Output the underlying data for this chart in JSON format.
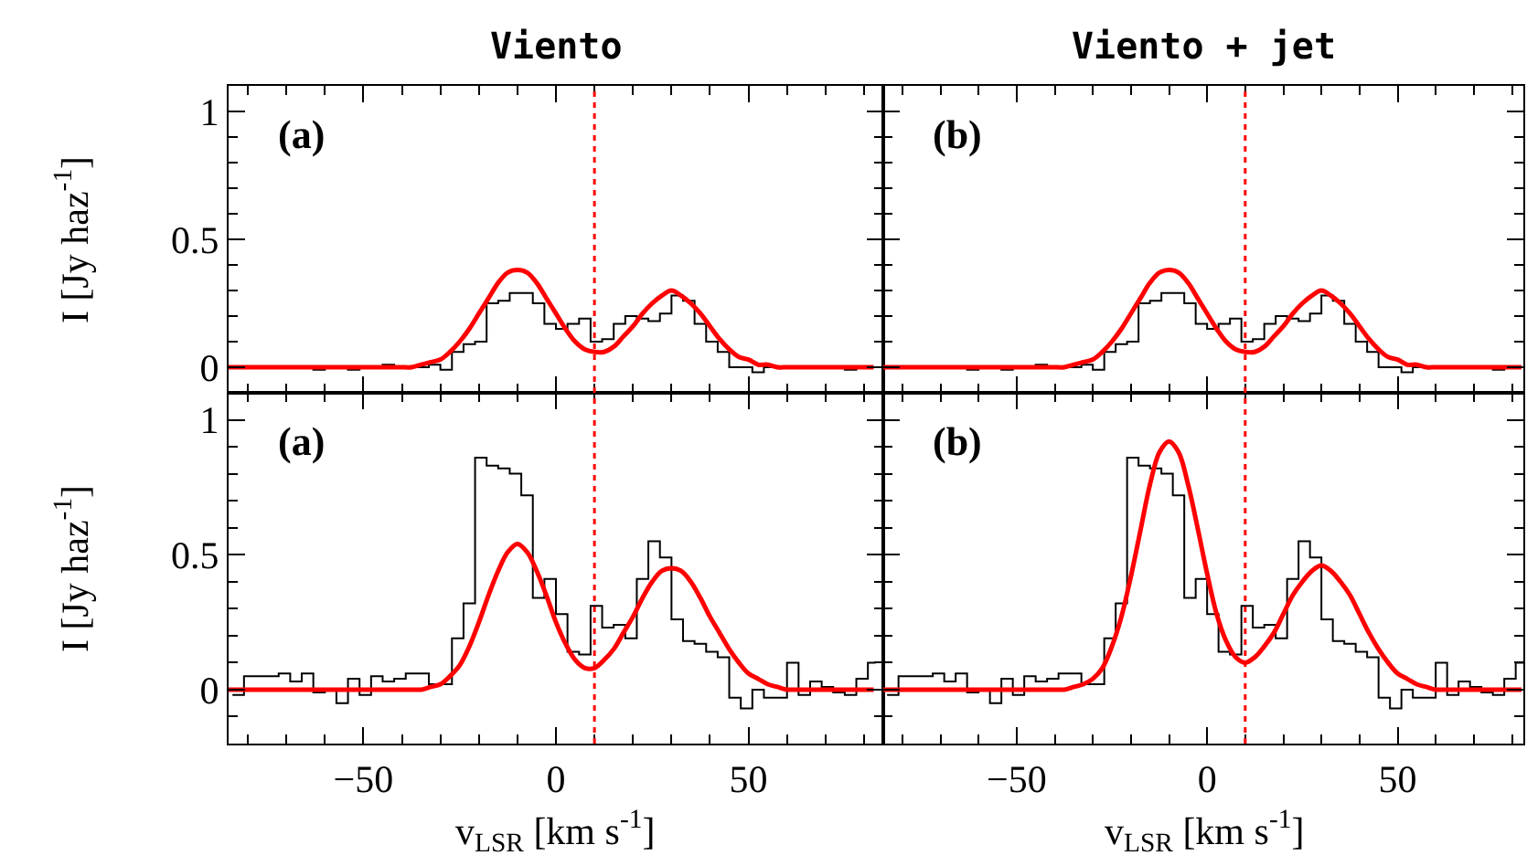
{
  "chart_data": [
    {
      "type": "line",
      "title": "Viento",
      "ylabel": "I [Jy haz$^{-1}$]",
      "annotations": [
        "(a)"
      ],
      "tick_labels": "y",
      "xlim": [
        -85,
        85
      ],
      "ylim": [
        -0.1,
        1.1
      ],
      "xticks": [
        {
          "value": -80,
          "label": null
        },
        {
          "value": -70,
          "label": null
        },
        {
          "value": -60,
          "label": null
        },
        -50,
        {
          "value": -40,
          "label": null
        },
        {
          "value": -30,
          "label": null
        },
        {
          "value": -20,
          "label": null
        },
        {
          "value": -10,
          "label": null
        },
        0,
        {
          "value": 10,
          "label": null
        },
        {
          "value": 20,
          "label": null
        },
        {
          "value": 30,
          "label": null
        },
        {
          "value": 40,
          "label": null
        },
        50,
        {
          "value": 60,
          "label": null
        },
        {
          "value": 70,
          "label": null
        },
        {
          "value": 80,
          "label": null
        }
      ],
      "yticks": [
        0,
        {
          "value": 0.1,
          "label": null
        },
        {
          "value": 0.2,
          "label": null
        },
        {
          "value": 0.3,
          "label": null
        },
        {
          "value": 0.4,
          "label": null
        },
        0.5,
        {
          "value": 0.6,
          "label": null
        },
        {
          "value": 0.7,
          "label": null
        },
        {
          "value": 0.8,
          "label": null
        },
        {
          "value": 0.9,
          "label": null
        },
        1
      ],
      "ref_lines": [
        {
          "axis": "x",
          "value": 10,
          "color": "#ff0000",
          "line_style": "dotted"
        }
      ],
      "series": [
        {
          "type": "histogram",
          "color": "#000000",
          "bins": [
            -84,
            -81,
            -78,
            -75,
            -72,
            -69,
            -66,
            -63,
            -60,
            -57,
            -54,
            -51,
            -48,
            -45,
            -42,
            -39,
            -36,
            -33,
            -30,
            -27,
            -24,
            -21,
            -18,
            -15,
            -12,
            -9,
            -6,
            -3,
            0,
            3,
            6,
            9,
            12,
            15,
            18,
            21,
            24,
            27,
            30,
            33,
            36,
            39,
            42,
            45,
            48,
            51,
            54,
            57,
            60,
            63,
            66,
            69,
            72,
            75,
            78,
            81,
            83
          ],
          "values": [
            0,
            0,
            0,
            0,
            0,
            0,
            0,
            -0.01,
            0,
            0,
            -0.01,
            0,
            0,
            0.01,
            0,
            0,
            0,
            0.01,
            -0.01,
            0.06,
            0.09,
            0.1,
            0.25,
            0.26,
            0.29,
            0.29,
            0.25,
            0.17,
            0.15,
            0.17,
            0.19,
            0.1,
            0.11,
            0.17,
            0.2,
            0.19,
            0.18,
            0.21,
            0.28,
            0.26,
            0.17,
            0.1,
            0.06,
            0,
            0,
            -0.02,
            0,
            0,
            0,
            0,
            0,
            0,
            0,
            -0.01,
            0,
            0
          ]
        },
        {
          "color": "#ff0000",
          "x": [
            -85,
            -82.5,
            -80,
            -77.5,
            -75,
            -72.5,
            -70,
            -67.5,
            -65,
            -62.5,
            -60,
            -57.5,
            -55,
            -52.5,
            -50,
            -47.5,
            -45,
            -42.5,
            -40,
            -37.5,
            -35,
            -32.5,
            -30,
            -27.5,
            -25,
            -22.5,
            -20,
            -17.5,
            -15,
            -12.5,
            -10,
            -7.5,
            -5,
            -2.5,
            0,
            2.5,
            5,
            7.5,
            10,
            12.5,
            15,
            17.5,
            20,
            22.5,
            25,
            27.5,
            30,
            32.5,
            35,
            37.5,
            40,
            42.5,
            45,
            47.5,
            50,
            52.5,
            55,
            57.5,
            60,
            62.5,
            65,
            67.5,
            70,
            72.5,
            75,
            77.5,
            80,
            82.5
          ],
          "values": [
            0,
            0,
            0,
            0,
            0,
            0,
            0,
            0,
            0,
            0,
            0,
            0,
            0,
            0,
            0,
            0,
            0,
            0,
            0,
            0,
            0.01,
            0.02,
            0.03,
            0.06,
            0.1,
            0.15,
            0.21,
            0.27,
            0.33,
            0.37,
            0.38,
            0.37,
            0.33,
            0.27,
            0.21,
            0.15,
            0.1,
            0.07,
            0.06,
            0.06,
            0.08,
            0.12,
            0.16,
            0.21,
            0.25,
            0.28,
            0.3,
            0.28,
            0.25,
            0.21,
            0.16,
            0.11,
            0.07,
            0.04,
            0.03,
            0.01,
            0.01,
            0,
            0,
            0,
            0,
            0,
            0,
            0,
            0,
            0,
            0,
            0
          ]
        }
      ]
    },
    {
      "type": "line",
      "title": "Viento + jet",
      "annotations": [
        "(b)"
      ],
      "tick_labels": false,
      "xlim": [
        -85,
        83
      ],
      "ylim": [
        -0.1,
        1.1
      ],
      "xticks": [
        {
          "value": -80,
          "label": null
        },
        {
          "value": -70,
          "label": null
        },
        {
          "value": -60,
          "label": null
        },
        -50,
        {
          "value": -40,
          "label": null
        },
        {
          "value": -30,
          "label": null
        },
        {
          "value": -20,
          "label": null
        },
        {
          "value": -10,
          "label": null
        },
        0,
        {
          "value": 10,
          "label": null
        },
        {
          "value": 20,
          "label": null
        },
        {
          "value": 30,
          "label": null
        },
        {
          "value": 40,
          "label": null
        },
        50,
        {
          "value": 60,
          "label": null
        },
        {
          "value": 70,
          "label": null
        },
        {
          "value": 80,
          "label": null
        }
      ],
      "yticks": [
        0,
        {
          "value": 0.1,
          "label": null
        },
        {
          "value": 0.2,
          "label": null
        },
        {
          "value": 0.3,
          "label": null
        },
        {
          "value": 0.4,
          "label": null
        },
        0.5,
        {
          "value": 0.6,
          "label": null
        },
        {
          "value": 0.7,
          "label": null
        },
        {
          "value": 0.8,
          "label": null
        },
        {
          "value": 0.9,
          "label": null
        },
        1
      ],
      "ref_lines": [
        {
          "axis": "x",
          "value": 10,
          "color": "#ff0000",
          "line_style": "dotted"
        }
      ],
      "series": [
        {
          "type": "histogram",
          "color": "#000000",
          "bins": [
            -84,
            -81,
            -78,
            -75,
            -72,
            -69,
            -66,
            -63,
            -60,
            -57,
            -54,
            -51,
            -48,
            -45,
            -42,
            -39,
            -36,
            -33,
            -30,
            -27,
            -24,
            -21,
            -18,
            -15,
            -12,
            -9,
            -6,
            -3,
            0,
            3,
            6,
            9,
            12,
            15,
            18,
            21,
            24,
            27,
            30,
            33,
            36,
            39,
            42,
            45,
            48,
            51,
            54,
            57,
            60,
            63,
            66,
            69,
            72,
            75,
            78,
            81,
            83
          ],
          "values": [
            0,
            0,
            0,
            0,
            0,
            0,
            0,
            -0.01,
            0,
            0,
            -0.01,
            0,
            0,
            0.01,
            0,
            0,
            0,
            0.01,
            -0.01,
            0.06,
            0.09,
            0.1,
            0.25,
            0.26,
            0.29,
            0.29,
            0.25,
            0.17,
            0.15,
            0.17,
            0.19,
            0.1,
            0.11,
            0.17,
            0.2,
            0.19,
            0.18,
            0.21,
            0.28,
            0.26,
            0.17,
            0.1,
            0.06,
            0,
            0,
            -0.02,
            0,
            0,
            0,
            0,
            0,
            0,
            0,
            -0.01,
            0,
            0
          ]
        },
        {
          "color": "#ff0000",
          "x": [
            -85,
            -82.5,
            -80,
            -77.5,
            -75,
            -72.5,
            -70,
            -67.5,
            -65,
            -62.5,
            -60,
            -57.5,
            -55,
            -52.5,
            -50,
            -47.5,
            -45,
            -42.5,
            -40,
            -37.5,
            -35,
            -32.5,
            -30,
            -27.5,
            -25,
            -22.5,
            -20,
            -17.5,
            -15,
            -12.5,
            -10,
            -7.5,
            -5,
            -2.5,
            0,
            2.5,
            5,
            7.5,
            10,
            12.5,
            15,
            17.5,
            20,
            22.5,
            25,
            27.5,
            30,
            32.5,
            35,
            37.5,
            40,
            42.5,
            45,
            47.5,
            50,
            52.5,
            55,
            57.5,
            60,
            62.5,
            65,
            67.5,
            70,
            72.5,
            75,
            77.5,
            80,
            82.5
          ],
          "values": [
            0,
            0,
            0,
            0,
            0,
            0,
            0,
            0,
            0,
            0,
            0,
            0,
            0,
            0,
            0,
            0,
            0,
            0,
            0,
            0,
            0.01,
            0.02,
            0.03,
            0.06,
            0.1,
            0.15,
            0.21,
            0.27,
            0.33,
            0.37,
            0.38,
            0.37,
            0.33,
            0.27,
            0.21,
            0.15,
            0.1,
            0.07,
            0.06,
            0.06,
            0.08,
            0.12,
            0.16,
            0.21,
            0.25,
            0.28,
            0.3,
            0.28,
            0.25,
            0.21,
            0.16,
            0.11,
            0.07,
            0.04,
            0.03,
            0.01,
            0.01,
            0,
            0,
            0,
            0,
            0,
            0,
            0,
            0,
            0,
            0,
            0
          ]
        }
      ]
    },
    {
      "type": "line",
      "xlabel": "v$_{LSR}$ [km s$^{-1}$]",
      "ylabel": "I [Jy haz$^{-1}$]",
      "annotations": [
        "(a)"
      ],
      "xlim": [
        -85,
        85
      ],
      "ylim": [
        -0.2,
        1.1
      ],
      "xticks": [
        {
          "value": -80,
          "label": null
        },
        {
          "value": -70,
          "label": null
        },
        {
          "value": -60,
          "label": null
        },
        {
          "value": -50,
          "label": "−50"
        },
        {
          "value": -40,
          "label": null
        },
        {
          "value": -30,
          "label": null
        },
        {
          "value": -20,
          "label": null
        },
        {
          "value": -10,
          "label": null
        },
        0,
        {
          "value": 10,
          "label": null
        },
        {
          "value": 20,
          "label": null
        },
        {
          "value": 30,
          "label": null
        },
        {
          "value": 40,
          "label": null
        },
        50,
        {
          "value": 60,
          "label": null
        },
        {
          "value": 70,
          "label": null
        },
        {
          "value": 80,
          "label": null
        }
      ],
      "yticks": [
        {
          "value": -0.1,
          "label": null
        },
        0,
        {
          "value": 0.1,
          "label": null
        },
        {
          "value": 0.2,
          "label": null
        },
        {
          "value": 0.3,
          "label": null
        },
        {
          "value": 0.4,
          "label": null
        },
        0.5,
        {
          "value": 0.6,
          "label": null
        },
        {
          "value": 0.7,
          "label": null
        },
        {
          "value": 0.8,
          "label": null
        },
        {
          "value": 0.9,
          "label": null
        },
        1
      ],
      "ref_lines": [
        {
          "axis": "x",
          "value": 10,
          "color": "#ff0000",
          "line_style": "dotted"
        }
      ],
      "series": [
        {
          "type": "histogram",
          "color": "#000000",
          "bins": [
            -84,
            -81,
            -78,
            -75,
            -72,
            -69,
            -66,
            -63,
            -60,
            -57,
            -54,
            -51,
            -48,
            -45,
            -42,
            -39,
            -36,
            -33,
            -30,
            -27,
            -24,
            -21,
            -18,
            -15,
            -12,
            -9,
            -6,
            -3,
            0,
            3,
            6,
            9,
            12,
            15,
            18,
            21,
            24,
            27,
            30,
            33,
            36,
            39,
            42,
            45,
            48,
            51,
            54,
            57,
            60,
            63,
            66,
            69,
            72,
            75,
            78,
            81,
            83
          ],
          "values": [
            -0.02,
            0.05,
            0.05,
            0.05,
            0.06,
            0.03,
            0.06,
            -0.01,
            0,
            -0.05,
            0.04,
            -0.02,
            0.05,
            0.03,
            0.04,
            0.06,
            0.06,
            0.02,
            0.02,
            0.19,
            0.32,
            0.86,
            0.83,
            0.82,
            0.8,
            0.72,
            0.34,
            0.41,
            0.28,
            0.14,
            0.13,
            0.31,
            0.23,
            0.24,
            0.19,
            0.41,
            0.55,
            0.49,
            0.26,
            0.18,
            0.17,
            0.14,
            0.12,
            -0.03,
            -0.07,
            0,
            -0.03,
            -0.03,
            0.1,
            -0.02,
            0.03,
            0.01,
            -0.01,
            -0.02,
            0.04,
            0.1
          ]
        },
        {
          "color": "#ff0000",
          "x": [
            -85,
            -82.5,
            -80,
            -77.5,
            -75,
            -72.5,
            -70,
            -67.5,
            -65,
            -62.5,
            -60,
            -57.5,
            -55,
            -52.5,
            -50,
            -47.5,
            -45,
            -42.5,
            -40,
            -37.5,
            -35,
            -32.5,
            -30,
            -27.5,
            -25,
            -22.5,
            -20,
            -17.5,
            -15,
            -12.5,
            -10,
            -7.5,
            -5,
            -2.5,
            0,
            2.5,
            5,
            7.5,
            10,
            12.5,
            15,
            17.5,
            20,
            22.5,
            25,
            27.5,
            30,
            32.5,
            35,
            37.5,
            40,
            42.5,
            45,
            47.5,
            50,
            52.5,
            55,
            57.5,
            60,
            62.5,
            65,
            67.5,
            70,
            72.5,
            75,
            77.5,
            80,
            82.5
          ],
          "values": [
            0,
            0,
            0,
            0,
            0,
            0,
            0,
            0,
            0,
            0,
            0,
            0,
            0,
            0,
            0,
            0,
            0,
            0,
            0,
            0,
            0,
            0.01,
            0.02,
            0.05,
            0.09,
            0.16,
            0.25,
            0.35,
            0.44,
            0.51,
            0.54,
            0.51,
            0.44,
            0.35,
            0.25,
            0.17,
            0.11,
            0.08,
            0.08,
            0.11,
            0.15,
            0.21,
            0.27,
            0.34,
            0.4,
            0.44,
            0.45,
            0.44,
            0.4,
            0.34,
            0.27,
            0.21,
            0.15,
            0.1,
            0.06,
            0.04,
            0.02,
            0.01,
            0,
            0,
            0,
            0,
            0,
            0,
            0,
            0,
            0,
            0
          ]
        }
      ]
    },
    {
      "type": "line",
      "xlabel": "v$_{LSR}$ [km s$^{-1}$]",
      "annotations": [
        "(b)"
      ],
      "tick_labels": "x",
      "xlim": [
        -85,
        83
      ],
      "ylim": [
        -0.2,
        1.1
      ],
      "xticks": [
        {
          "value": -80,
          "label": null
        },
        {
          "value": -70,
          "label": null
        },
        {
          "value": -60,
          "label": null
        },
        {
          "value": -50,
          "label": "−50"
        },
        {
          "value": -40,
          "label": null
        },
        {
          "value": -30,
          "label": null
        },
        {
          "value": -20,
          "label": null
        },
        {
          "value": -10,
          "label": null
        },
        0,
        {
          "value": 10,
          "label": null
        },
        {
          "value": 20,
          "label": null
        },
        {
          "value": 30,
          "label": null
        },
        {
          "value": 40,
          "label": null
        },
        50,
        {
          "value": 60,
          "label": null
        },
        {
          "value": 70,
          "label": null
        },
        {
          "value": 80,
          "label": null
        }
      ],
      "yticks": [
        {
          "value": -0.1,
          "label": null
        },
        0,
        {
          "value": 0.1,
          "label": null
        },
        {
          "value": 0.2,
          "label": null
        },
        {
          "value": 0.3,
          "label": null
        },
        {
          "value": 0.4,
          "label": null
        },
        0.5,
        {
          "value": 0.6,
          "label": null
        },
        {
          "value": 0.7,
          "label": null
        },
        {
          "value": 0.8,
          "label": null
        },
        {
          "value": 0.9,
          "label": null
        },
        1
      ],
      "ref_lines": [
        {
          "axis": "x",
          "value": 10,
          "color": "#ff0000",
          "line_style": "dotted"
        }
      ],
      "series": [
        {
          "type": "histogram",
          "color": "#000000",
          "bins": [
            -84,
            -81,
            -78,
            -75,
            -72,
            -69,
            -66,
            -63,
            -60,
            -57,
            -54,
            -51,
            -48,
            -45,
            -42,
            -39,
            -36,
            -33,
            -30,
            -27,
            -24,
            -21,
            -18,
            -15,
            -12,
            -9,
            -6,
            -3,
            0,
            3,
            6,
            9,
            12,
            15,
            18,
            21,
            24,
            27,
            30,
            33,
            36,
            39,
            42,
            45,
            48,
            51,
            54,
            57,
            60,
            63,
            66,
            69,
            72,
            75,
            78,
            81,
            83
          ],
          "values": [
            -0.02,
            0.05,
            0.05,
            0.05,
            0.06,
            0.03,
            0.06,
            -0.01,
            0,
            -0.05,
            0.04,
            -0.02,
            0.05,
            0.03,
            0.04,
            0.06,
            0.06,
            0.02,
            0.02,
            0.19,
            0.32,
            0.86,
            0.83,
            0.82,
            0.8,
            0.72,
            0.34,
            0.41,
            0.28,
            0.14,
            0.13,
            0.31,
            0.23,
            0.24,
            0.19,
            0.41,
            0.55,
            0.49,
            0.26,
            0.18,
            0.17,
            0.14,
            0.12,
            -0.03,
            -0.07,
            0,
            -0.03,
            -0.03,
            0.1,
            -0.02,
            0.03,
            0.01,
            -0.01,
            -0.02,
            0.04,
            0.1
          ]
        },
        {
          "color": "#ff0000",
          "x": [
            -85,
            -82.5,
            -80,
            -77.5,
            -75,
            -72.5,
            -70,
            -67.5,
            -65,
            -62.5,
            -60,
            -57.5,
            -55,
            -52.5,
            -50,
            -47.5,
            -45,
            -42.5,
            -40,
            -37.5,
            -35,
            -32.5,
            -30,
            -27.5,
            -25,
            -22.5,
            -20,
            -17.5,
            -15,
            -12.5,
            -10,
            -7.5,
            -5,
            -2.5,
            0,
            2.5,
            5,
            7.5,
            10,
            12.5,
            15,
            17.5,
            20,
            22.5,
            25,
            27.5,
            30,
            32.5,
            35,
            37.5,
            40,
            42.5,
            45,
            47.5,
            50,
            52.5,
            55,
            57.5,
            60,
            62.5,
            65,
            67.5,
            70,
            72.5,
            75,
            77.5,
            80,
            82.5
          ],
          "values": [
            0,
            0,
            0,
            0,
            0,
            0,
            0,
            0,
            0,
            0,
            0,
            0,
            0,
            0,
            0,
            0,
            0,
            0,
            0,
            0,
            0.01,
            0.02,
            0.04,
            0.08,
            0.16,
            0.27,
            0.42,
            0.59,
            0.76,
            0.88,
            0.92,
            0.88,
            0.76,
            0.6,
            0.43,
            0.28,
            0.18,
            0.12,
            0.1,
            0.12,
            0.16,
            0.21,
            0.28,
            0.35,
            0.4,
            0.44,
            0.46,
            0.44,
            0.4,
            0.35,
            0.28,
            0.21,
            0.15,
            0.1,
            0.06,
            0.04,
            0.02,
            0.01,
            0,
            0,
            0,
            0,
            0,
            0,
            0,
            0,
            0,
            0
          ]
        }
      ]
    }
  ]
}
